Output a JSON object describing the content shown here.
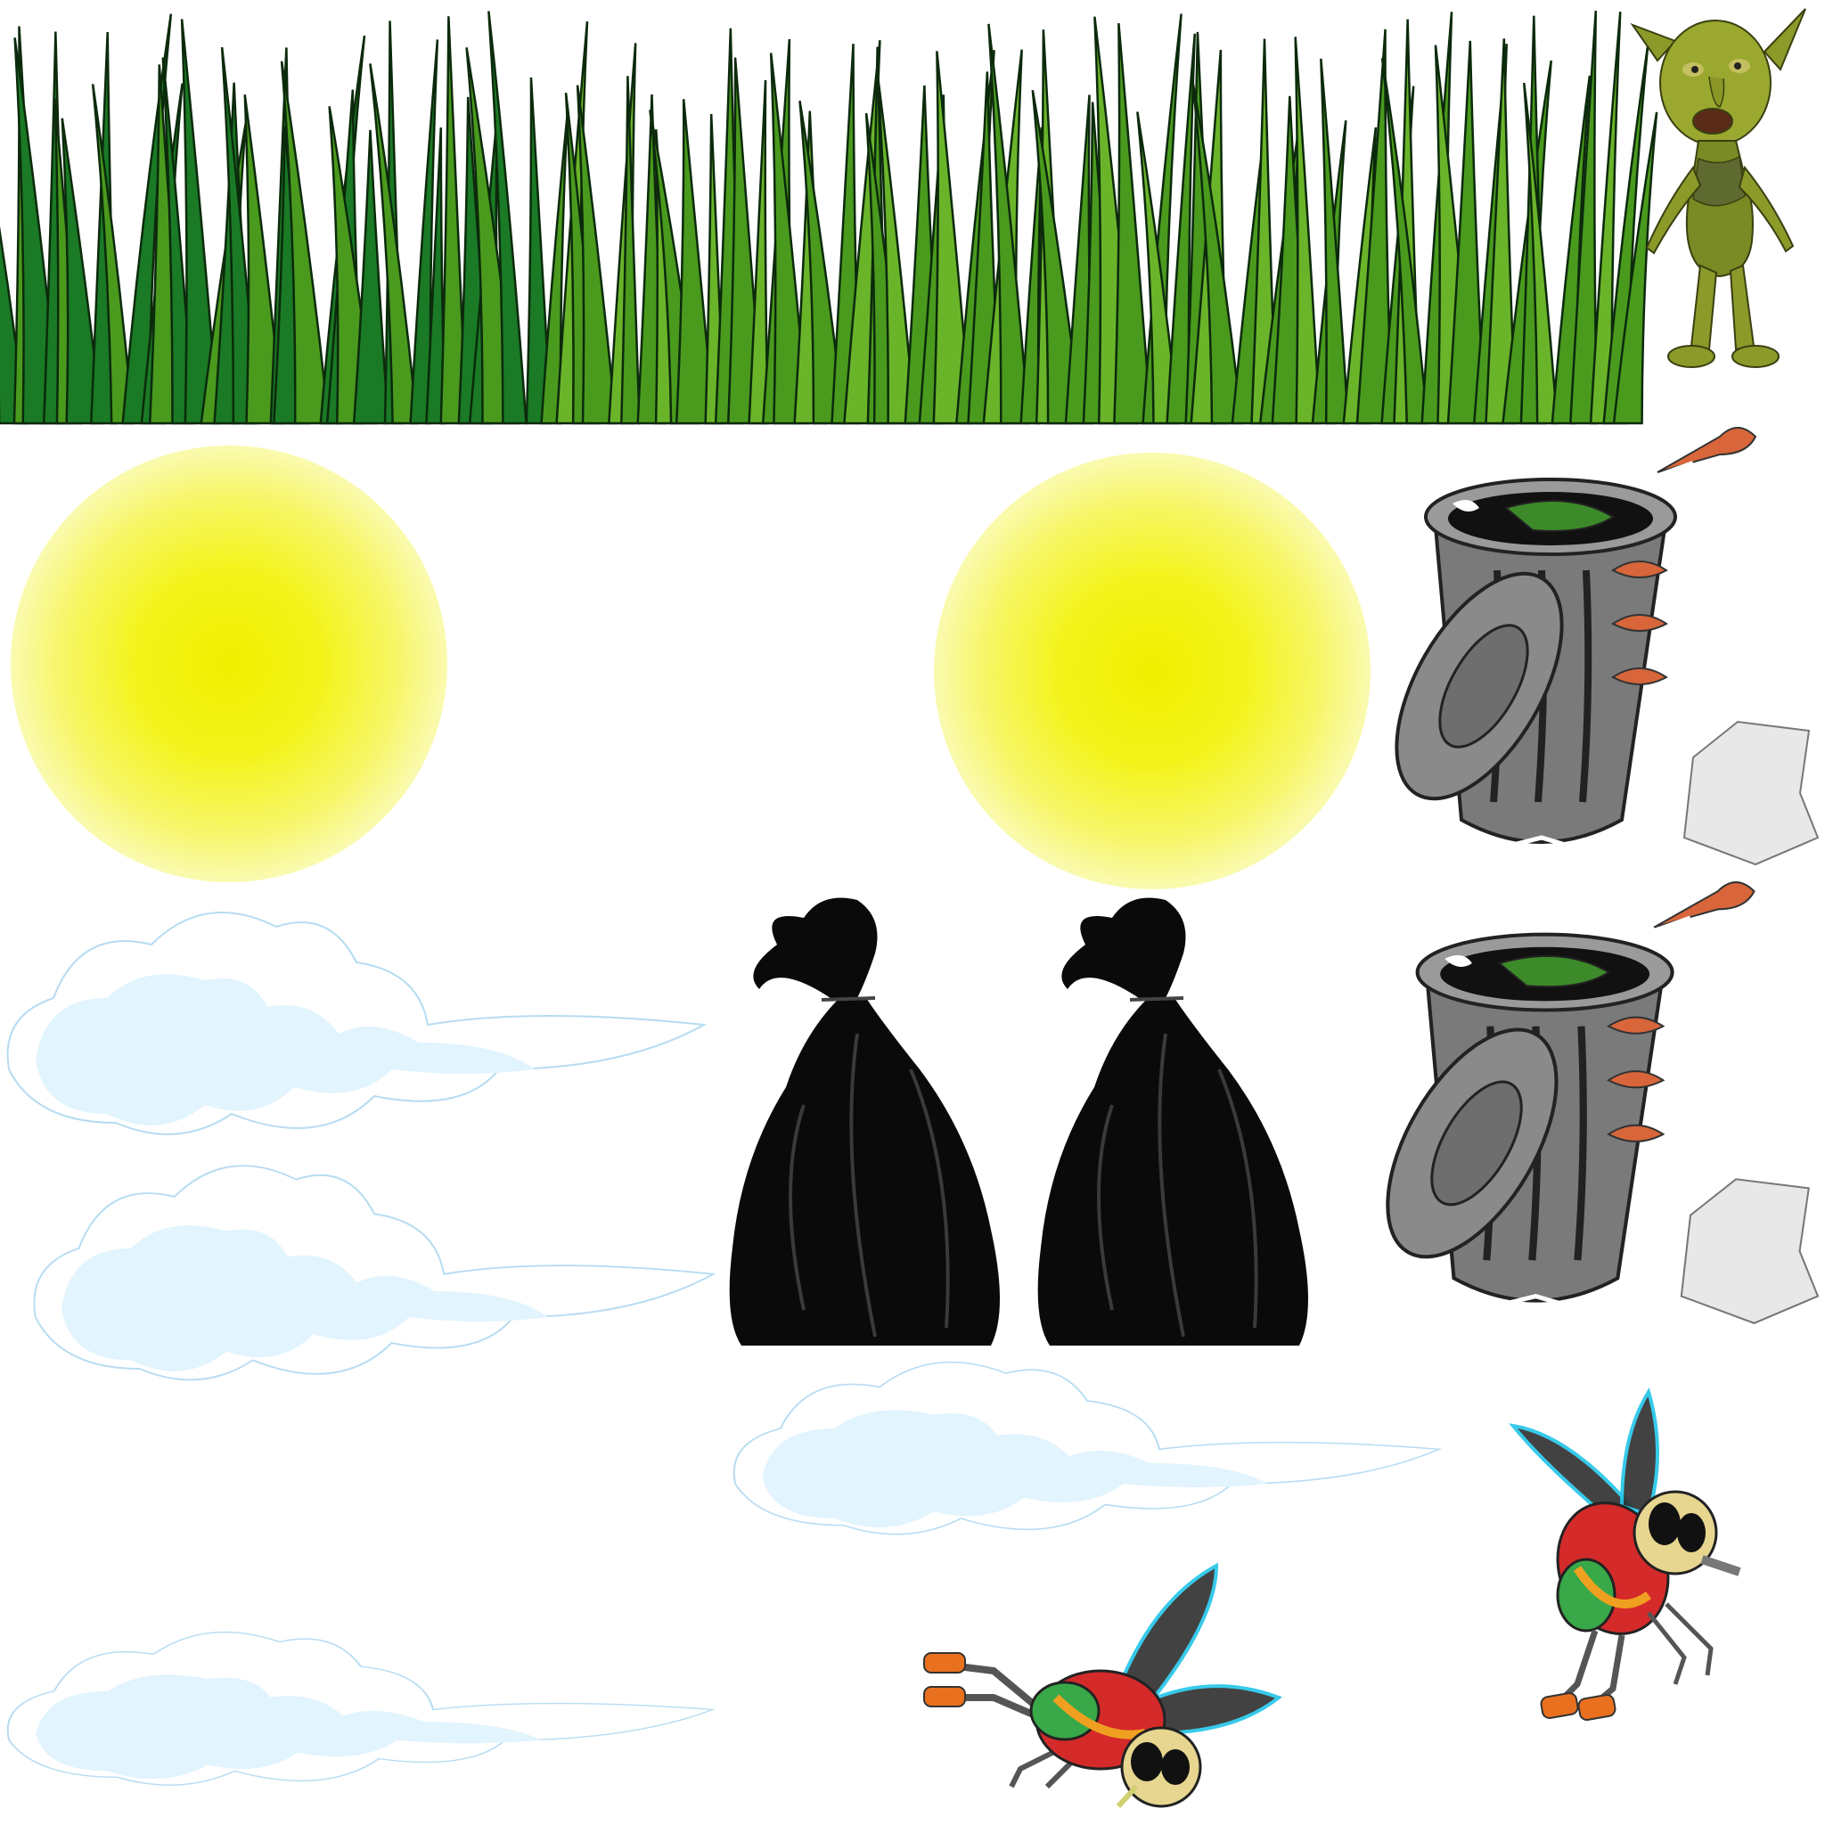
{
  "sheet": {
    "background": "#ffffff",
    "grass_colors": {
      "dark": "#1a7a25",
      "mid": "#4a9a1e",
      "light": "#6ab42a",
      "outline": "#0c2a0c"
    },
    "glow_color": "#f1f000",
    "cloud_colors": {
      "fill": "#e2f4fd",
      "outline": "#b6dcf2"
    },
    "bag_color": "#0a0a0a",
    "can_colors": {
      "body": "#7a7a7a",
      "rim": "#9a9a9a",
      "shadow": "#4a4a4a",
      "fish": "#d8663a",
      "slime": "#3c8a2a"
    },
    "goblin_colors": {
      "skin": "#8c9a2a",
      "skin_dark": "#5c6a18",
      "shirt": "#5e6a30"
    },
    "fly_colors": {
      "wing": "#2a2a2a",
      "wing_edge": "#22c5e8",
      "body": "#d42a2a",
      "leg": "#555555",
      "shoe": "#e8701e"
    }
  },
  "sprites": [
    {
      "name": "grass-patch-dark",
      "icon": "grass-icon"
    },
    {
      "name": "grass-patch-light-1",
      "icon": "grass-icon"
    },
    {
      "name": "grass-patch-light-2",
      "icon": "grass-icon"
    },
    {
      "name": "goblin",
      "icon": "goblin-icon"
    },
    {
      "name": "glow-orb-1",
      "icon": "glow-orb-icon"
    },
    {
      "name": "glow-orb-2",
      "icon": "glow-orb-icon"
    },
    {
      "name": "trash-can-1",
      "icon": "trash-can-icon"
    },
    {
      "name": "trash-can-2",
      "icon": "trash-can-icon"
    },
    {
      "name": "garbage-bag-1",
      "icon": "garbage-bag-icon"
    },
    {
      "name": "garbage-bag-2",
      "icon": "garbage-bag-icon"
    },
    {
      "name": "cloud-1",
      "icon": "cloud-icon"
    },
    {
      "name": "cloud-2",
      "icon": "cloud-icon"
    },
    {
      "name": "cloud-3",
      "icon": "cloud-icon"
    },
    {
      "name": "cloud-4",
      "icon": "cloud-icon"
    },
    {
      "name": "fly-1",
      "icon": "fly-icon"
    },
    {
      "name": "fly-2",
      "icon": "fly-icon"
    }
  ]
}
